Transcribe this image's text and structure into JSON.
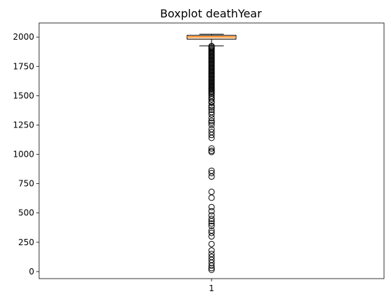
{
  "chart_data": {
    "type": "boxplot",
    "title": "Boxplot deathYear",
    "xlabel": "",
    "ylabel": "",
    "x_tick_labels": [
      "1"
    ],
    "y_ticks": [
      0,
      250,
      500,
      750,
      1000,
      1250,
      1500,
      1750,
      2000
    ],
    "y_tick_labels": [
      "0",
      "250",
      "500",
      "750",
      "1000",
      "1250",
      "1500",
      "1750",
      "2000"
    ],
    "ylim": [
      -60,
      2120
    ],
    "grid": false,
    "box": {
      "whisker_low": 1925,
      "q1": 1982,
      "median": 2003,
      "q3": 2015,
      "whisker_high": 2024
    },
    "outliers": [
      1923,
      1915,
      1905,
      1895,
      1885,
      1875,
      1865,
      1855,
      1845,
      1835,
      1825,
      1815,
      1805,
      1795,
      1785,
      1775,
      1765,
      1755,
      1745,
      1735,
      1725,
      1715,
      1705,
      1695,
      1685,
      1675,
      1665,
      1655,
      1645,
      1635,
      1625,
      1615,
      1605,
      1595,
      1585,
      1575,
      1565,
      1555,
      1545,
      1535,
      1525,
      1515,
      1500,
      1485,
      1470,
      1450,
      1440,
      1415,
      1400,
      1380,
      1360,
      1340,
      1310,
      1285,
      1270,
      1250,
      1215,
      1190,
      1165,
      1140,
      1050,
      1030,
      1020,
      860,
      840,
      810,
      680,
      630,
      550,
      515,
      480,
      450,
      430,
      410,
      390,
      350,
      330,
      300,
      235,
      180,
      150,
      125,
      100,
      75,
      50,
      30,
      15
    ],
    "colors": {
      "box_face": "#ffdfbf",
      "median": "#ff7f0e",
      "edge": "#000000"
    }
  }
}
